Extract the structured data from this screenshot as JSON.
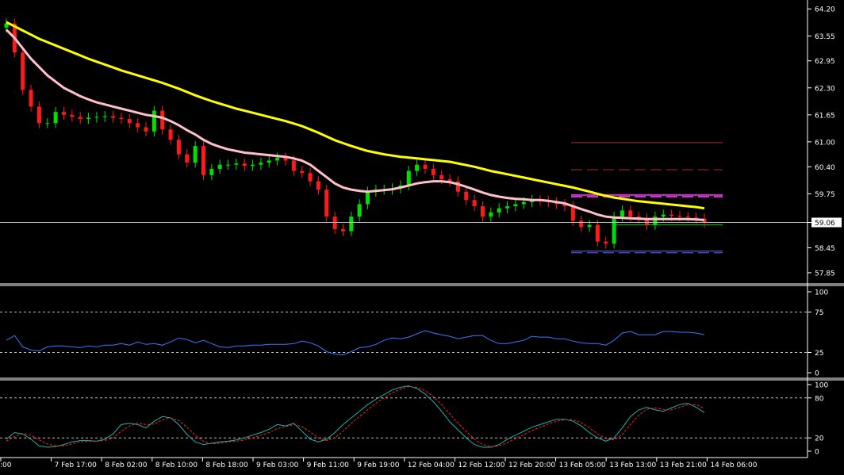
{
  "chart_data": [
    {
      "panel": "price",
      "type": "candlestick",
      "ylim": [
        57.6,
        64.3
      ],
      "yticks": [
        "64.20",
        "63.55",
        "62.95",
        "62.30",
        "61.65",
        "61.00",
        "60.40",
        "59.75",
        "59.06",
        "58.45",
        "57.85"
      ],
      "current_price": "59.06",
      "colors": {
        "up": "#00e000",
        "down": "#ff1a1a",
        "ma_fast": "#ffc0cb",
        "ma_slow": "#ffff00",
        "current_line": "#c0c0c0"
      },
      "close": [
        63.85,
        63.15,
        62.25,
        61.85,
        61.45,
        61.45,
        61.72,
        61.65,
        61.6,
        61.55,
        61.58,
        61.6,
        61.62,
        61.58,
        61.55,
        61.45,
        61.35,
        61.25,
        61.75,
        61.3,
        61.05,
        60.7,
        60.5,
        60.9,
        60.2,
        60.35,
        60.45,
        60.45,
        60.48,
        60.42,
        60.45,
        60.5,
        60.55,
        60.62,
        60.55,
        60.3,
        60.25,
        60.05,
        59.85,
        59.2,
        58.9,
        58.85,
        59.2,
        59.5,
        59.8,
        59.85,
        59.85,
        59.88,
        59.95,
        60.3,
        60.45,
        60.35,
        60.2,
        60.1,
        60.05,
        59.8,
        59.6,
        59.45,
        59.2,
        59.3,
        59.4,
        59.45,
        59.5,
        59.55,
        59.6,
        59.58,
        59.55,
        59.5,
        59.45,
        59.1,
        58.95,
        59.0,
        58.6,
        58.55,
        59.2,
        59.35,
        59.2,
        59.15,
        59.0,
        59.2,
        59.25,
        59.22,
        59.2,
        59.18,
        59.15,
        59.06
      ],
      "ma_fast": [
        63.7,
        63.5,
        63.25,
        63.0,
        62.8,
        62.6,
        62.45,
        62.3,
        62.2,
        62.1,
        62.02,
        61.95,
        61.9,
        61.85,
        61.8,
        61.75,
        61.7,
        61.65,
        61.62,
        61.58,
        61.5,
        61.4,
        61.28,
        61.18,
        61.05,
        60.95,
        60.88,
        60.82,
        60.78,
        60.74,
        60.72,
        60.7,
        60.68,
        60.66,
        60.64,
        60.6,
        60.55,
        60.45,
        60.3,
        60.15,
        60.0,
        59.9,
        59.85,
        59.82,
        59.8,
        59.82,
        59.84,
        59.86,
        59.9,
        59.95,
        60.0,
        60.03,
        60.05,
        60.05,
        60.03,
        59.98,
        59.92,
        59.85,
        59.78,
        59.72,
        59.68,
        59.65,
        59.63,
        59.62,
        59.6,
        59.6,
        59.58,
        59.55,
        59.52,
        59.45,
        59.38,
        59.32,
        59.25,
        59.2,
        59.18,
        59.17,
        59.16,
        59.15,
        59.14,
        59.14,
        59.14,
        59.14,
        59.14,
        59.14,
        59.13,
        59.12
      ],
      "ma_slow": [
        63.88,
        63.78,
        63.68,
        63.58,
        63.48,
        63.4,
        63.32,
        63.24,
        63.16,
        63.08,
        63.0,
        62.93,
        62.86,
        62.79,
        62.72,
        62.66,
        62.6,
        62.54,
        62.48,
        62.42,
        62.35,
        62.28,
        62.2,
        62.12,
        62.05,
        61.98,
        61.92,
        61.86,
        61.8,
        61.75,
        61.7,
        61.65,
        61.6,
        61.55,
        61.5,
        61.44,
        61.38,
        61.3,
        61.22,
        61.13,
        61.04,
        60.97,
        60.9,
        60.84,
        60.78,
        60.74,
        60.7,
        60.67,
        60.64,
        60.62,
        60.6,
        60.58,
        60.56,
        60.54,
        60.52,
        60.48,
        60.44,
        60.4,
        60.35,
        60.3,
        60.26,
        60.22,
        60.18,
        60.14,
        60.1,
        60.06,
        60.02,
        59.98,
        59.94,
        59.9,
        59.85,
        59.8,
        59.75,
        59.7,
        59.66,
        59.63,
        59.6,
        59.57,
        59.55,
        59.53,
        59.51,
        59.49,
        59.47,
        59.45,
        59.43,
        59.4
      ],
      "levels": [
        {
          "value": 60.98,
          "color": "#b22222",
          "style": "solid"
        },
        {
          "value": 60.33,
          "color": "#b22222",
          "style": "dashed"
        },
        {
          "value": 59.72,
          "color": "#cc33cc",
          "style": "solid"
        },
        {
          "value": 59.68,
          "color": "#cc33cc",
          "style": "dashed"
        },
        {
          "value": 59.0,
          "color": "#00cc00",
          "style": "solid"
        },
        {
          "value": 58.37,
          "color": "#6666ff",
          "style": "solid"
        },
        {
          "value": 58.33,
          "color": "#6666ff",
          "style": "dashed"
        }
      ]
    },
    {
      "panel": "rsi",
      "type": "line",
      "ylim": [
        0,
        100
      ],
      "yticks": [
        "100",
        "75",
        "25",
        "0"
      ],
      "levels": [
        75,
        25
      ],
      "color": "#3c78ff",
      "values": [
        40,
        46,
        32,
        28,
        27,
        32,
        33,
        33,
        32,
        31,
        33,
        32,
        34,
        34,
        36,
        34,
        38,
        35,
        36,
        34,
        38,
        43,
        41,
        37,
        40,
        36,
        32,
        31,
        33,
        33,
        34,
        34,
        35,
        35,
        35,
        36,
        39,
        37,
        33,
        26,
        23,
        22,
        26,
        31,
        32,
        35,
        40,
        43,
        42,
        44,
        48,
        52,
        49,
        47,
        45,
        42,
        44,
        46,
        46,
        40,
        36,
        36,
        38,
        40,
        45,
        44,
        44,
        42,
        42,
        39,
        37,
        36,
        36,
        34,
        40,
        49,
        51,
        47,
        47,
        47,
        51,
        51,
        50,
        50,
        49,
        47
      ]
    },
    {
      "panel": "stochastic",
      "type": "line",
      "ylim": [
        0,
        100
      ],
      "yticks": [
        "100",
        "80",
        "20",
        "0"
      ],
      "levels": [
        80,
        20
      ],
      "colors": {
        "main": "#20b2aa",
        "signal": "#ff2020"
      },
      "main": [
        18,
        28,
        26,
        18,
        8,
        6,
        7,
        10,
        14,
        16,
        16,
        15,
        18,
        26,
        40,
        42,
        40,
        35,
        45,
        52,
        50,
        40,
        25,
        14,
        10,
        12,
        14,
        15,
        17,
        20,
        24,
        28,
        33,
        40,
        38,
        42,
        30,
        18,
        14,
        18,
        28,
        40,
        50,
        60,
        70,
        78,
        85,
        92,
        96,
        98,
        94,
        86,
        74,
        60,
        44,
        32,
        20,
        10,
        6,
        6,
        10,
        18,
        24,
        30,
        36,
        40,
        44,
        48,
        48,
        45,
        38,
        28,
        20,
        15,
        20,
        35,
        52,
        62,
        66,
        62,
        60,
        65,
        70,
        72,
        66,
        58
      ],
      "signal": [
        15,
        22,
        26,
        24,
        17,
        11,
        8,
        8,
        11,
        14,
        15,
        15,
        16,
        20,
        30,
        38,
        42,
        40,
        41,
        47,
        50,
        46,
        36,
        24,
        15,
        11,
        12,
        14,
        15,
        17,
        20,
        24,
        28,
        34,
        37,
        40,
        37,
        29,
        20,
        16,
        20,
        30,
        42,
        52,
        62,
        72,
        80,
        88,
        93,
        97,
        96,
        91,
        82,
        70,
        56,
        42,
        30,
        18,
        10,
        7,
        8,
        13,
        19,
        25,
        31,
        36,
        41,
        45,
        47,
        47,
        43,
        35,
        26,
        19,
        17,
        25,
        40,
        54,
        63,
        65,
        63,
        62,
        66,
        70,
        70,
        64
      ]
    }
  ],
  "xaxis": {
    "labels": [
      ":00",
      "7 Feb 17:00",
      "8 Feb 02:00",
      "8 Feb 10:00",
      "8 Feb 18:00",
      "9 Feb 03:00",
      "9 Feb 11:00",
      "9 Feb 19:00",
      "12 Feb 04:00",
      "12 Feb 12:00",
      "12 Feb 20:00",
      "13 Feb 05:00",
      "13 Feb 13:00",
      "13 Feb 21:00",
      "14 Feb 06:00"
    ]
  }
}
